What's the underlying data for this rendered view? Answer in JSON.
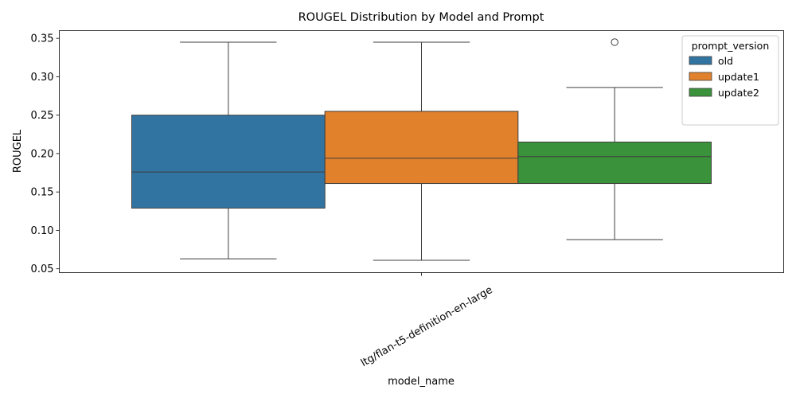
{
  "chart_data": {
    "type": "box",
    "title": "ROUGEL Distribution by Model and Prompt",
    "xlabel": "model_name",
    "ylabel": "ROUGEL",
    "categories": [
      "ltg/flan-t5-definition-en-large"
    ],
    "ylim": [
      0.045,
      0.36
    ],
    "yticks": [
      "0.05",
      "0.10",
      "0.15",
      "0.20",
      "0.25",
      "0.30",
      "0.35"
    ],
    "legend": {
      "title": "prompt_version",
      "placement": "top-right"
    },
    "series": [
      {
        "name": "old",
        "color": "#3274a1",
        "whisker_low": 0.063,
        "q1": 0.129,
        "median": 0.176,
        "q3": 0.25,
        "whisker_high": 0.345,
        "outliers": []
      },
      {
        "name": "update1",
        "color": "#e1812c",
        "whisker_low": 0.061,
        "q1": 0.161,
        "median": 0.194,
        "q3": 0.255,
        "whisker_high": 0.345,
        "outliers": []
      },
      {
        "name": "update2",
        "color": "#3a923a",
        "whisker_low": 0.088,
        "q1": 0.161,
        "median": 0.196,
        "q3": 0.215,
        "whisker_high": 0.286,
        "outliers": [
          0.345
        ]
      }
    ]
  }
}
